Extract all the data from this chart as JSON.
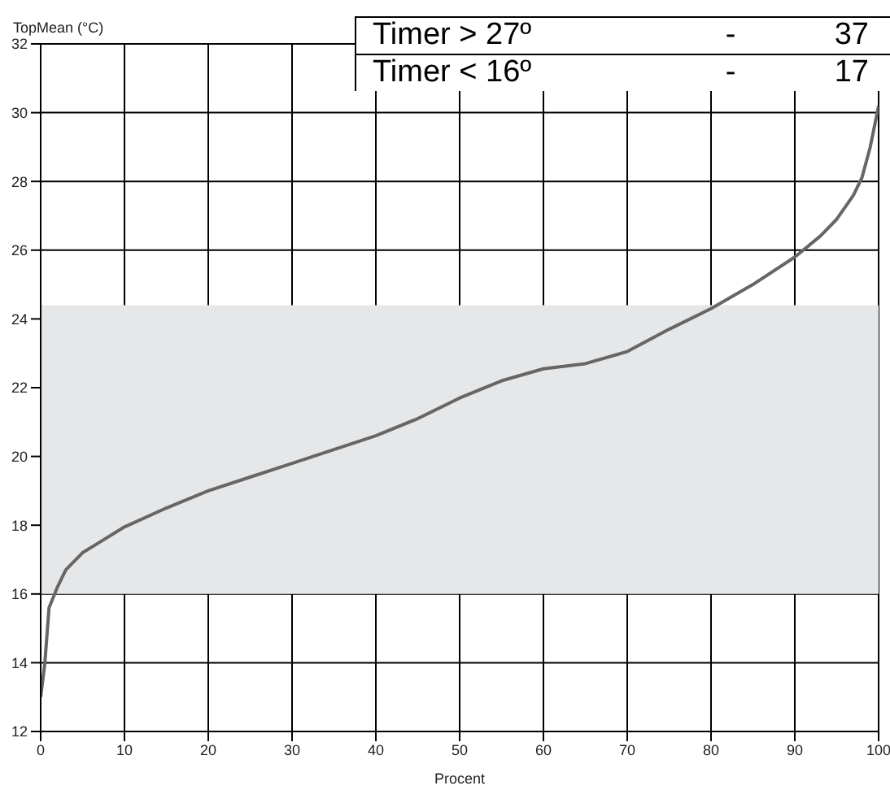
{
  "chart_data": {
    "type": "line",
    "xlabel": "Procent",
    "ylabel": "TopMean (°C)",
    "x": [
      0,
      0.5,
      1,
      2,
      3,
      5,
      7,
      10,
      15,
      20,
      25,
      30,
      35,
      40,
      45,
      50,
      55,
      60,
      65,
      70,
      75,
      80,
      85,
      90,
      93,
      95,
      97,
      98,
      99,
      100
    ],
    "series": [
      {
        "color": "#666666",
        "values": [
          13,
          14,
          15.6,
          16.2,
          16.7,
          17.2,
          17.5,
          17.95,
          18.5,
          19,
          19.4,
          19.8,
          20.2,
          20.6,
          21.1,
          21.7,
          22.2,
          22.55,
          22.7,
          23.05,
          23.7,
          24.3,
          25,
          25.8,
          26.4,
          26.9,
          27.6,
          28.1,
          29,
          30.2
        ]
      }
    ],
    "xlim": [
      0,
      100
    ],
    "xticks": [
      0,
      10,
      20,
      30,
      40,
      50,
      60,
      70,
      80,
      90,
      100
    ],
    "ylim": [
      12,
      32
    ],
    "yticks": [
      12,
      14,
      16,
      18,
      20,
      22,
      24,
      26,
      28,
      30,
      32
    ],
    "grid": true,
    "marker": "none",
    "line_style": "solid",
    "bands": [
      {
        "axis": "y",
        "from": 16,
        "to": 24.4,
        "color": "#e6e7e9"
      }
    ],
    "annotations": [
      "Timer > 27º",
      "-",
      "37",
      "Timer < 16º",
      "-",
      "17"
    ]
  }
}
